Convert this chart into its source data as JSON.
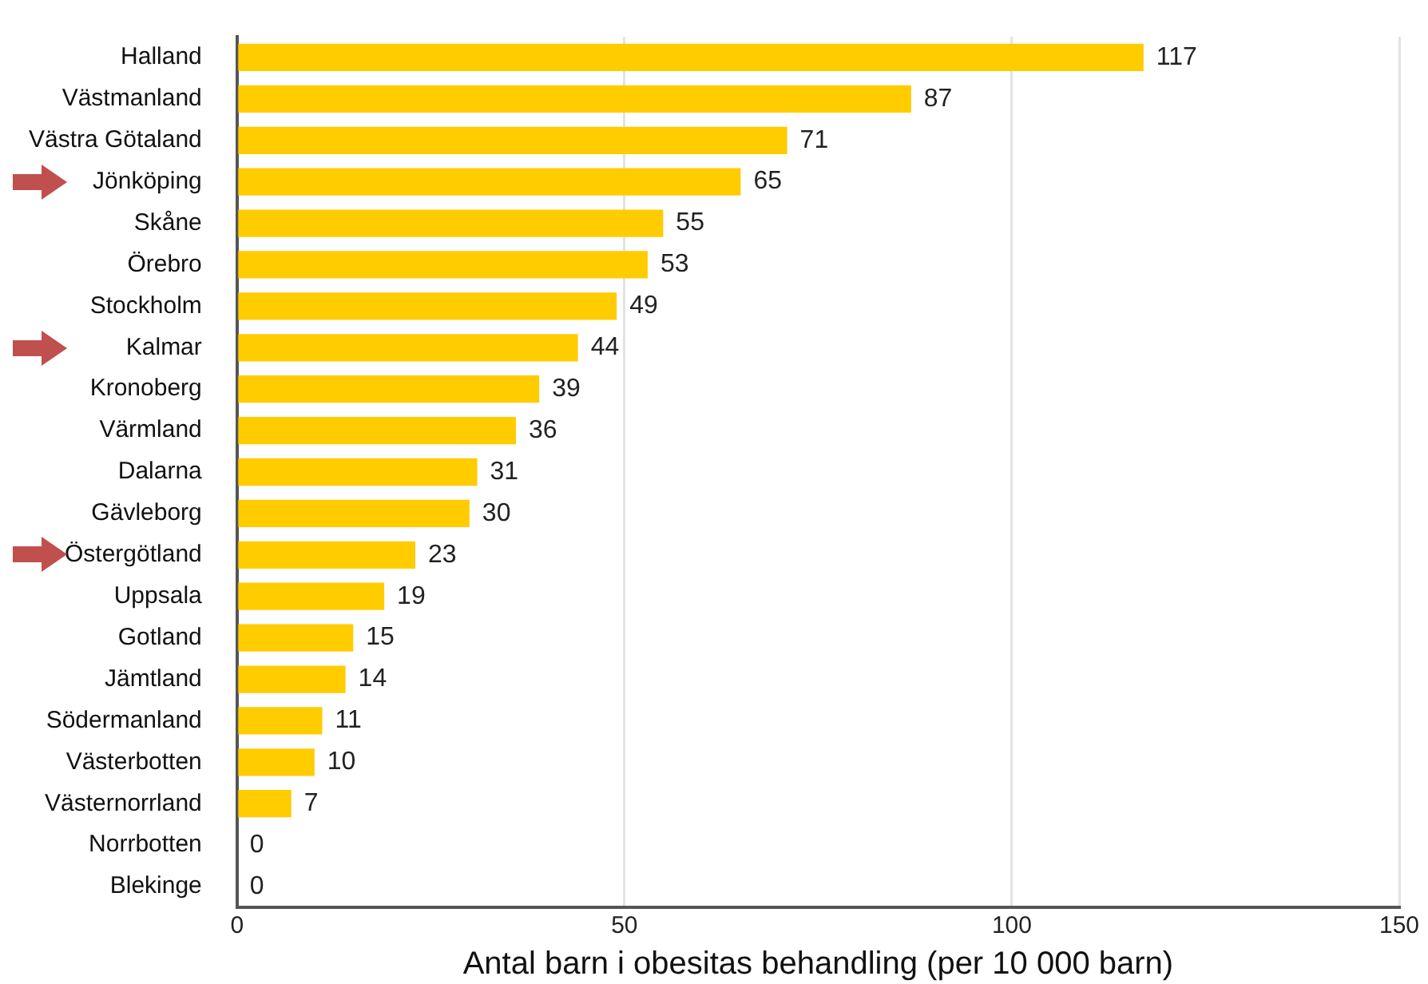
{
  "chart_data": {
    "type": "bar",
    "orientation": "horizontal",
    "xlabel": "Antal barn i obesitas behandling (per 10 000 barn)",
    "categories": [
      "Halland",
      "Västmanland",
      "Västra Götaland",
      "Jönköping",
      "Skåne",
      "Örebro",
      "Stockholm",
      "Kalmar",
      "Kronoberg",
      "Värmland",
      "Dalarna",
      "Gävleborg",
      "Östergötland",
      "Uppsala",
      "Gotland",
      "Jämtland",
      "Södermanland",
      "Västerbotten",
      "Västernorrland",
      "Norrbotten",
      "Blekinge"
    ],
    "values": [
      117,
      87,
      71,
      65,
      55,
      53,
      49,
      44,
      39,
      36,
      31,
      30,
      23,
      19,
      15,
      14,
      11,
      10,
      7,
      0,
      0
    ],
    "color": "#ffcc00",
    "xlim": [
      0,
      150
    ],
    "xticks": [
      0,
      50,
      100,
      150
    ],
    "grid": "x",
    "data_labels": true,
    "legend": false
  }
}
